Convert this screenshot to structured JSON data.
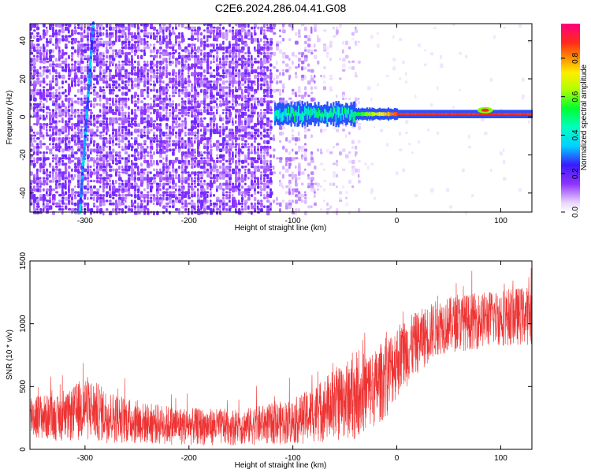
{
  "title": "C2E6.2024.286.04.41.G08",
  "chart_data": [
    {
      "type": "heatmap",
      "xlabel": "Height of straight line (km)",
      "ylabel": "Frequency (Hz)",
      "xlim": [
        -353,
        130
      ],
      "ylim": [
        -50,
        49
      ],
      "xticks": [
        -300,
        -200,
        -100,
        0,
        100
      ],
      "yticks": [
        -40,
        -20,
        0,
        20,
        40
      ],
      "grid": false,
      "colorbar": {
        "label": "Normalized spectral amplitude",
        "range": [
          0,
          0.98
        ],
        "ticks": [
          0.0,
          0.2,
          0.4,
          0.6,
          0.8
        ],
        "colormap": "white-purple-blue-cyan-green-yellow-orange-red-pink"
      },
      "features": {
        "noise_region_km": [
          -353,
          -35
        ],
        "carrier_line_freq_hz": 1.5,
        "carrier_start_km": -118,
        "carrier_amplitude_above_0km": 0.9,
        "diagonal_streak": {
          "x_at_top_km": -292,
          "x_at_bottom_km": -305,
          "amplitude": 0.3
        }
      }
    },
    {
      "type": "line",
      "xlabel": "Height of straight line (km)",
      "ylabel": "SNR (10 * v/v)",
      "xlim": [
        -353,
        130
      ],
      "ylim": [
        0,
        1500
      ],
      "xticks": [
        -300,
        -200,
        -100,
        0,
        100
      ],
      "yticks": [
        0,
        500,
        1000,
        1500
      ],
      "grid": false,
      "series": [
        {
          "color": "#ee3333",
          "envelope": {
            "x": [
              -353,
              -320,
              -300,
              -280,
              -250,
              -200,
              -150,
              -100,
              -80,
              -60,
              -40,
              -20,
              -10,
              0,
              20,
              40,
              60,
              80,
              100,
              130
            ],
            "low": [
              80,
              60,
              60,
              50,
              40,
              30,
              30,
              40,
              50,
              60,
              80,
              180,
              250,
              400,
              600,
              750,
              780,
              800,
              820,
              830
            ],
            "high": [
              450,
              420,
              600,
              480,
              380,
              330,
              320,
              400,
              500,
              650,
              750,
              800,
              900,
              1000,
              1100,
              1200,
              1230,
              1250,
              1280,
              1300
            ]
          }
        }
      ]
    }
  ]
}
